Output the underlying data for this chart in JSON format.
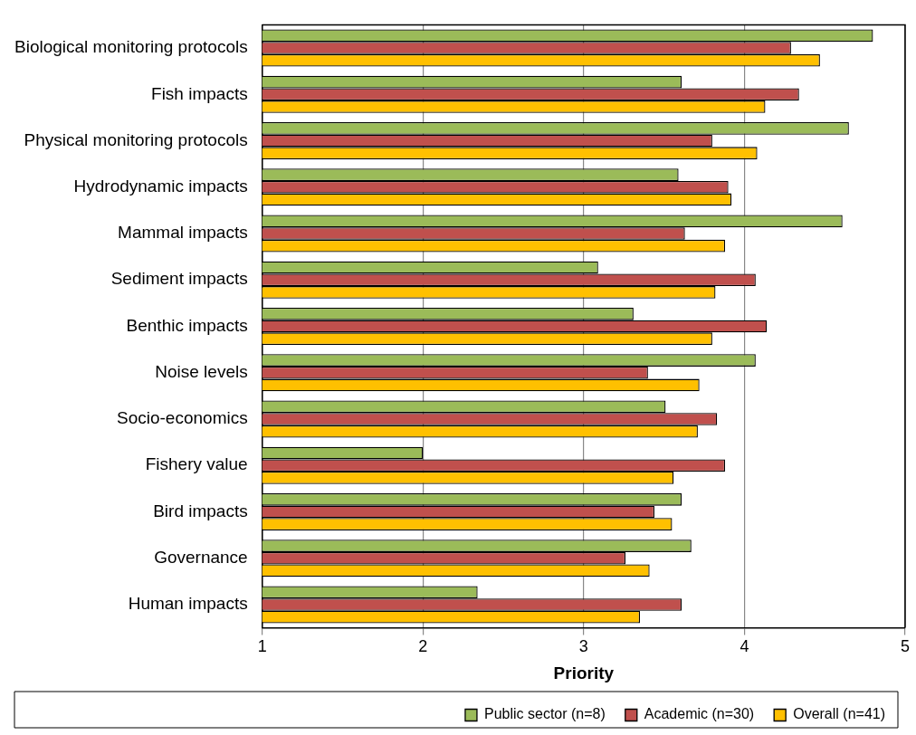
{
  "chart_data": {
    "type": "bar",
    "orientation": "horizontal",
    "xlabel": "Priority",
    "categories": [
      "Biological monitoring protocols",
      "Fish impacts",
      "Physical monitoring protocols",
      "Hydrodynamic impacts",
      "Mammal impacts",
      "Sediment impacts",
      "Benthic impacts",
      "Noise levels",
      "Socio-economics",
      "Fishery value",
      "Bird impacts",
      "Governance",
      "Human impacts"
    ],
    "series": [
      {
        "name": "Public sector (n=8)",
        "color": "#9bbb59",
        "values": [
          4.8,
          3.61,
          4.65,
          3.59,
          4.61,
          3.09,
          3.31,
          4.07,
          3.51,
          2.0,
          3.61,
          3.67,
          2.34
        ]
      },
      {
        "name": "Academic (n=30)",
        "color": "#c0504d",
        "values": [
          4.29,
          4.34,
          3.8,
          3.9,
          3.63,
          4.07,
          4.14,
          3.4,
          3.83,
          3.88,
          3.44,
          3.26,
          3.61
        ]
      },
      {
        "name": "Overall (n=41)",
        "color": "#ffc000",
        "values": [
          4.47,
          4.13,
          4.08,
          3.92,
          3.88,
          3.82,
          3.8,
          3.72,
          3.71,
          3.56,
          3.55,
          3.41,
          3.35
        ]
      }
    ],
    "xlim": [
      1,
      5
    ],
    "xticks": [
      1,
      2,
      3,
      4,
      5
    ],
    "grid": "x",
    "legend": "bottom"
  }
}
